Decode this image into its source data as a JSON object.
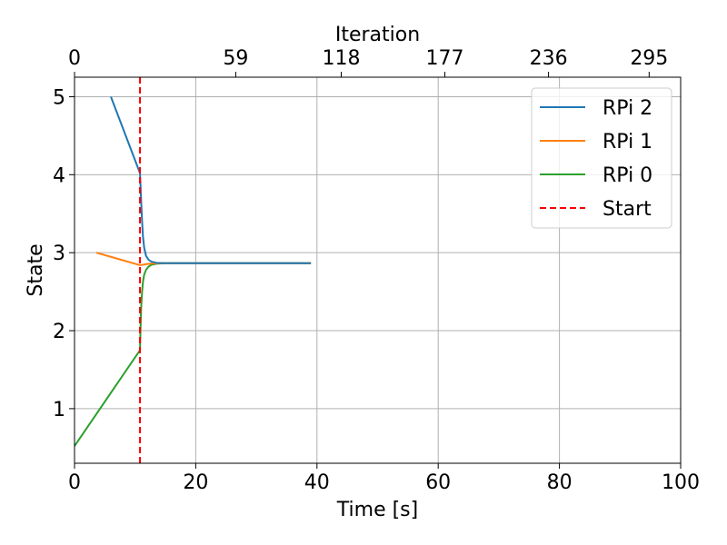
{
  "chart_data": {
    "type": "line",
    "xlabel": "Time [s]",
    "ylabel": "State",
    "x2label": "Iteration",
    "xlim": [
      0,
      100
    ],
    "ylim": [
      0.3,
      5.25
    ],
    "xticks": [
      0,
      20,
      40,
      60,
      80,
      100
    ],
    "yticks": [
      1,
      2,
      3,
      4,
      5
    ],
    "x2ticks": [
      {
        "label": "0",
        "x": 0
      },
      {
        "label": "59",
        "x": 26.6
      },
      {
        "label": "118",
        "x": 44
      },
      {
        "label": "177",
        "x": 61.1
      },
      {
        "label": "236",
        "x": 78.2
      },
      {
        "label": "295",
        "x": 94.8
      }
    ],
    "grid": true,
    "legend_position": "top-right",
    "series": [
      {
        "name": "RPi 2",
        "color": "#1f77b4",
        "x": [
          6,
          10.8,
          10.9,
          11.0,
          11.15,
          11.3,
          11.5,
          11.8,
          12.2,
          12.7,
          13.5,
          15,
          20,
          30,
          39
        ],
        "y": [
          5.0,
          4.02,
          3.85,
          3.65,
          3.4,
          3.2,
          3.06,
          2.96,
          2.91,
          2.885,
          2.87,
          2.865,
          2.865,
          2.865,
          2.865
        ]
      },
      {
        "name": "RPi 1",
        "color": "#ff7f0e",
        "x": [
          3.6,
          10.8,
          11.3,
          12,
          13,
          15,
          20,
          30,
          39
        ],
        "y": [
          3.0,
          2.84,
          2.845,
          2.855,
          2.862,
          2.865,
          2.865,
          2.865,
          2.865
        ]
      },
      {
        "name": "RPi 0",
        "color": "#2ca02c",
        "x": [
          0,
          10.8,
          10.9,
          11.0,
          11.15,
          11.3,
          11.5,
          11.8,
          12.2,
          12.7,
          13.5,
          15,
          20,
          30,
          39
        ],
        "y": [
          0.52,
          1.75,
          2.05,
          2.3,
          2.5,
          2.63,
          2.72,
          2.78,
          2.82,
          2.845,
          2.858,
          2.865,
          2.865,
          2.865,
          2.865
        ]
      }
    ],
    "vlines": [
      {
        "name": "Start",
        "x": 10.8,
        "color": "#ff0000",
        "style": "dashed"
      }
    ],
    "legend": [
      "RPi 2",
      "RPi 1",
      "RPi 0",
      "Start"
    ]
  }
}
